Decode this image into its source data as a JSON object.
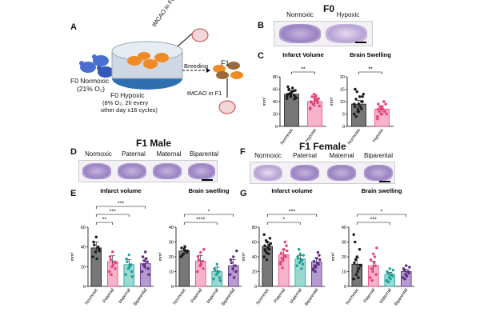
{
  "panelA": {
    "letter": "A",
    "f0_normoxic": "F0 Normoxic",
    "f0_normoxic_o2": "(21% O₂)",
    "tmcao_f0": "tMCAO in F0",
    "breeding": "Breeding",
    "f1": "F1",
    "tmcao_f1": "tMCAO in F1",
    "f0_hypoxic": "F0 Hypoxic",
    "hypoxic_detail_1": "(8% O₂, 2h every",
    "hypoxic_detail_2": "other day x16 cycles)"
  },
  "panelB": {
    "letter": "B",
    "title": "F0",
    "labels": [
      "Normoxic",
      "Hypoxic"
    ]
  },
  "panelC": {
    "letter": "C"
  },
  "panelD": {
    "letter": "D",
    "title": "F1 Male",
    "labels": [
      "Normoxic",
      "Paternal",
      "Maternal",
      "Biparental"
    ]
  },
  "panelE": {
    "letter": "E"
  },
  "panelF": {
    "letter": "F",
    "title": "F1 Female",
    "labels": [
      "Normoxic",
      "Paternal",
      "Maternal",
      "Biparental"
    ]
  },
  "panelG": {
    "letter": "G"
  },
  "colors": {
    "normoxic": "#1a1a1a",
    "paternal": "#e8407a",
    "maternal": "#1aa39a",
    "biparental": "#5b2a86",
    "hypoxic": "#e8407a"
  },
  "chart_data": [
    {
      "id": "C1",
      "type": "bar",
      "title": "Infarct Volume",
      "ylabel": "mm³",
      "categories": [
        "Normoxic",
        "Hypoxic"
      ],
      "values": [
        52,
        40
      ],
      "errors": [
        6,
        8
      ],
      "ylim": [
        0,
        80
      ],
      "yticks": [
        0,
        20,
        40,
        60,
        80
      ],
      "points": [
        [
          45,
          48,
          50,
          52,
          55,
          58,
          60,
          62,
          46,
          53,
          57,
          49,
          51,
          44,
          64,
          56,
          47,
          59
        ],
        [
          30,
          35,
          38,
          40,
          42,
          45,
          48,
          50,
          33,
          36,
          44,
          28,
          52,
          41,
          39,
          46
        ]
      ],
      "significance": [
        {
          "from": 0,
          "to": 1,
          "text": "**"
        }
      ]
    },
    {
      "id": "C2",
      "type": "bar",
      "title": "Brain Swelling",
      "ylabel": "mm³",
      "categories": [
        "Normoxic",
        "Hypoxic"
      ],
      "values": [
        9,
        7
      ],
      "errors": [
        1.5,
        1.2
      ],
      "ylim": [
        0,
        20
      ],
      "yticks": [
        0,
        5,
        10,
        15,
        20
      ],
      "points": [
        [
          5,
          6,
          7,
          8,
          9,
          10,
          11,
          12,
          13,
          14,
          8,
          9,
          7,
          10,
          15,
          6,
          12,
          4
        ],
        [
          4,
          5,
          6,
          7,
          8,
          9,
          6,
          7,
          5,
          8,
          10,
          3,
          7,
          6,
          9,
          5
        ]
      ],
      "significance": [
        {
          "from": 0,
          "to": 1,
          "text": "**"
        }
      ]
    },
    {
      "id": "E1",
      "type": "bar",
      "title": "Infarct volume",
      "ylabel": "mm³",
      "categories": [
        "Normoxic",
        "Paternal",
        "Maternal",
        "Biparental"
      ],
      "values": [
        39,
        25,
        22,
        23
      ],
      "errors": [
        6,
        6,
        5,
        6
      ],
      "ylim": [
        0,
        60
      ],
      "yticks": [
        0,
        20,
        40,
        60
      ],
      "points": [
        [
          30,
          35,
          40,
          45,
          50,
          38,
          42,
          28,
          36
        ],
        [
          15,
          20,
          25,
          30,
          35,
          18,
          27,
          22,
          24,
          12
        ],
        [
          12,
          18,
          22,
          28,
          32,
          15,
          25,
          20,
          10
        ],
        [
          15,
          20,
          25,
          30,
          35,
          18,
          22,
          28,
          12,
          26
        ]
      ],
      "significance": [
        {
          "from": 0,
          "to": 1,
          "text": "**"
        },
        {
          "from": 0,
          "to": 2,
          "text": "***"
        },
        {
          "from": 0,
          "to": 3,
          "text": "***"
        }
      ]
    },
    {
      "id": "E2",
      "type": "bar",
      "title": "Brain swelling",
      "ylabel": "mm³",
      "categories": [
        "Normoxic",
        "Paternal",
        "Maternal",
        "Biparental"
      ],
      "values": [
        24,
        17,
        10,
        14
      ],
      "errors": [
        2,
        4,
        3,
        4
      ],
      "ylim": [
        0,
        40
      ],
      "yticks": [
        0,
        10,
        20,
        30,
        40
      ],
      "points": [
        [
          20,
          22,
          24,
          26,
          25,
          23,
          21,
          27,
          24
        ],
        [
          10,
          14,
          17,
          20,
          23,
          12,
          18,
          15,
          25
        ],
        [
          5,
          8,
          10,
          12,
          15,
          6,
          11,
          9,
          4
        ],
        [
          8,
          12,
          14,
          18,
          20,
          10,
          16,
          6,
          24
        ]
      ],
      "significance": [
        {
          "from": 0,
          "to": 2,
          "text": "****"
        },
        {
          "from": 0,
          "to": 3,
          "text": "*"
        }
      ]
    },
    {
      "id": "G1",
      "type": "bar",
      "title": "Infarct volume",
      "ylabel": "mm³",
      "categories": [
        "Normoxic",
        "Paternal",
        "Maternal",
        "Biparental"
      ],
      "values": [
        54,
        43,
        37,
        33
      ],
      "errors": [
        5,
        6,
        5,
        5
      ],
      "ylim": [
        0,
        80
      ],
      "yticks": [
        0,
        20,
        40,
        60,
        80
      ],
      "points": [
        [
          40,
          45,
          50,
          55,
          60,
          65,
          48,
          52,
          58,
          62,
          44,
          70,
          36,
          56,
          50
        ],
        [
          30,
          35,
          40,
          45,
          50,
          55,
          38,
          42,
          48,
          25,
          60,
          33
        ],
        [
          28,
          32,
          36,
          40,
          44,
          30,
          38,
          34,
          42,
          50,
          24
        ],
        [
          22,
          26,
          30,
          34,
          38,
          42,
          28,
          32,
          36,
          20,
          46,
          24
        ]
      ],
      "significance": [
        {
          "from": 0,
          "to": 2,
          "text": "*"
        },
        {
          "from": 0,
          "to": 3,
          "text": "***"
        }
      ]
    },
    {
      "id": "G2",
      "type": "bar",
      "title": "Brain swelling",
      "ylabel": "mm³",
      "categories": [
        "Normoxic",
        "Paternal",
        "Maternal",
        "Biparental"
      ],
      "values": [
        15,
        14,
        8,
        10
      ],
      "errors": [
        4,
        3,
        1.5,
        1.5
      ],
      "ylim": [
        0,
        40
      ],
      "yticks": [
        0,
        10,
        20,
        30,
        40
      ],
      "points": [
        [
          5,
          8,
          12,
          16,
          20,
          25,
          30,
          10,
          14,
          18,
          6,
          35
        ],
        [
          6,
          10,
          14,
          18,
          22,
          8,
          12,
          16,
          26,
          4,
          20
        ],
        [
          4,
          6,
          8,
          10,
          12,
          7,
          9,
          5,
          11,
          3
        ],
        [
          6,
          8,
          10,
          12,
          14,
          9,
          11,
          7,
          13,
          5
        ]
      ],
      "significance": [
        {
          "from": 0,
          "to": 2,
          "text": "***"
        },
        {
          "from": 0,
          "to": 3,
          "text": "*"
        }
      ]
    }
  ]
}
